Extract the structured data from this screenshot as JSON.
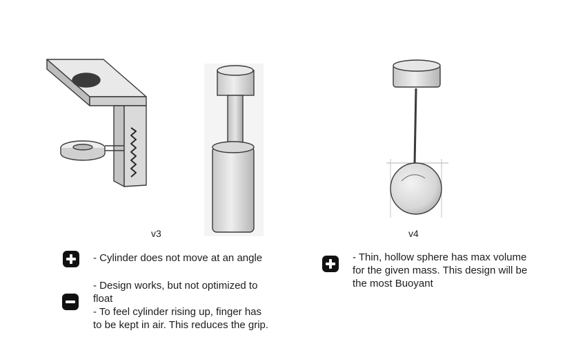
{
  "designs": {
    "v3": {
      "label": "v3",
      "pros": {
        "icon": "plus-badge-icon",
        "lines": [
          "- Cylinder does not move at an angle"
        ]
      },
      "cons": {
        "icon": "minus-badge-icon",
        "lines": [
          "- Design works, but not optimized to",
          "float",
          "- To feel cylinder rising up, finger has",
          "to be kept in air. This reduces the grip."
        ]
      }
    },
    "v4": {
      "label": "v4",
      "pros": {
        "icon": "plus-badge-icon",
        "lines": [
          "- Thin, hollow sphere has max volume",
          "for the given mass. This design will be",
          "the most Buoyant"
        ]
      }
    }
  },
  "colors": {
    "pencil": "#3a3a3a",
    "shade": "#9a9a9a",
    "badge": "#111111"
  }
}
